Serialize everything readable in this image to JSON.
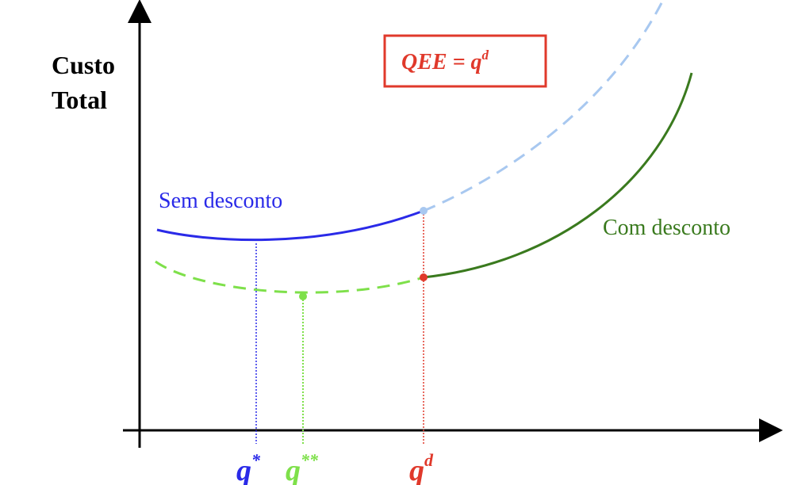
{
  "y_axis_label": [
    "Custo",
    "Total"
  ],
  "box_label": {
    "main": "QEE = q",
    "sup": "d"
  },
  "curves": {
    "sem_desconto": {
      "label": "Sem desconto",
      "color": "#2a2ae8",
      "dashed_color": "#a8c8f0"
    },
    "com_desconto": {
      "label": "Com desconto",
      "color": "#3a7a1e",
      "dashed_color": "#7ee04a"
    }
  },
  "x_markers": [
    {
      "base": "q",
      "sup": "*",
      "color": "#2a2ae8"
    },
    {
      "base": "q",
      "sup": "**",
      "color": "#7ee04a"
    },
    {
      "base": "q",
      "sup": "d",
      "color": "#e0392b"
    }
  ],
  "accent_color": "#e0392b"
}
